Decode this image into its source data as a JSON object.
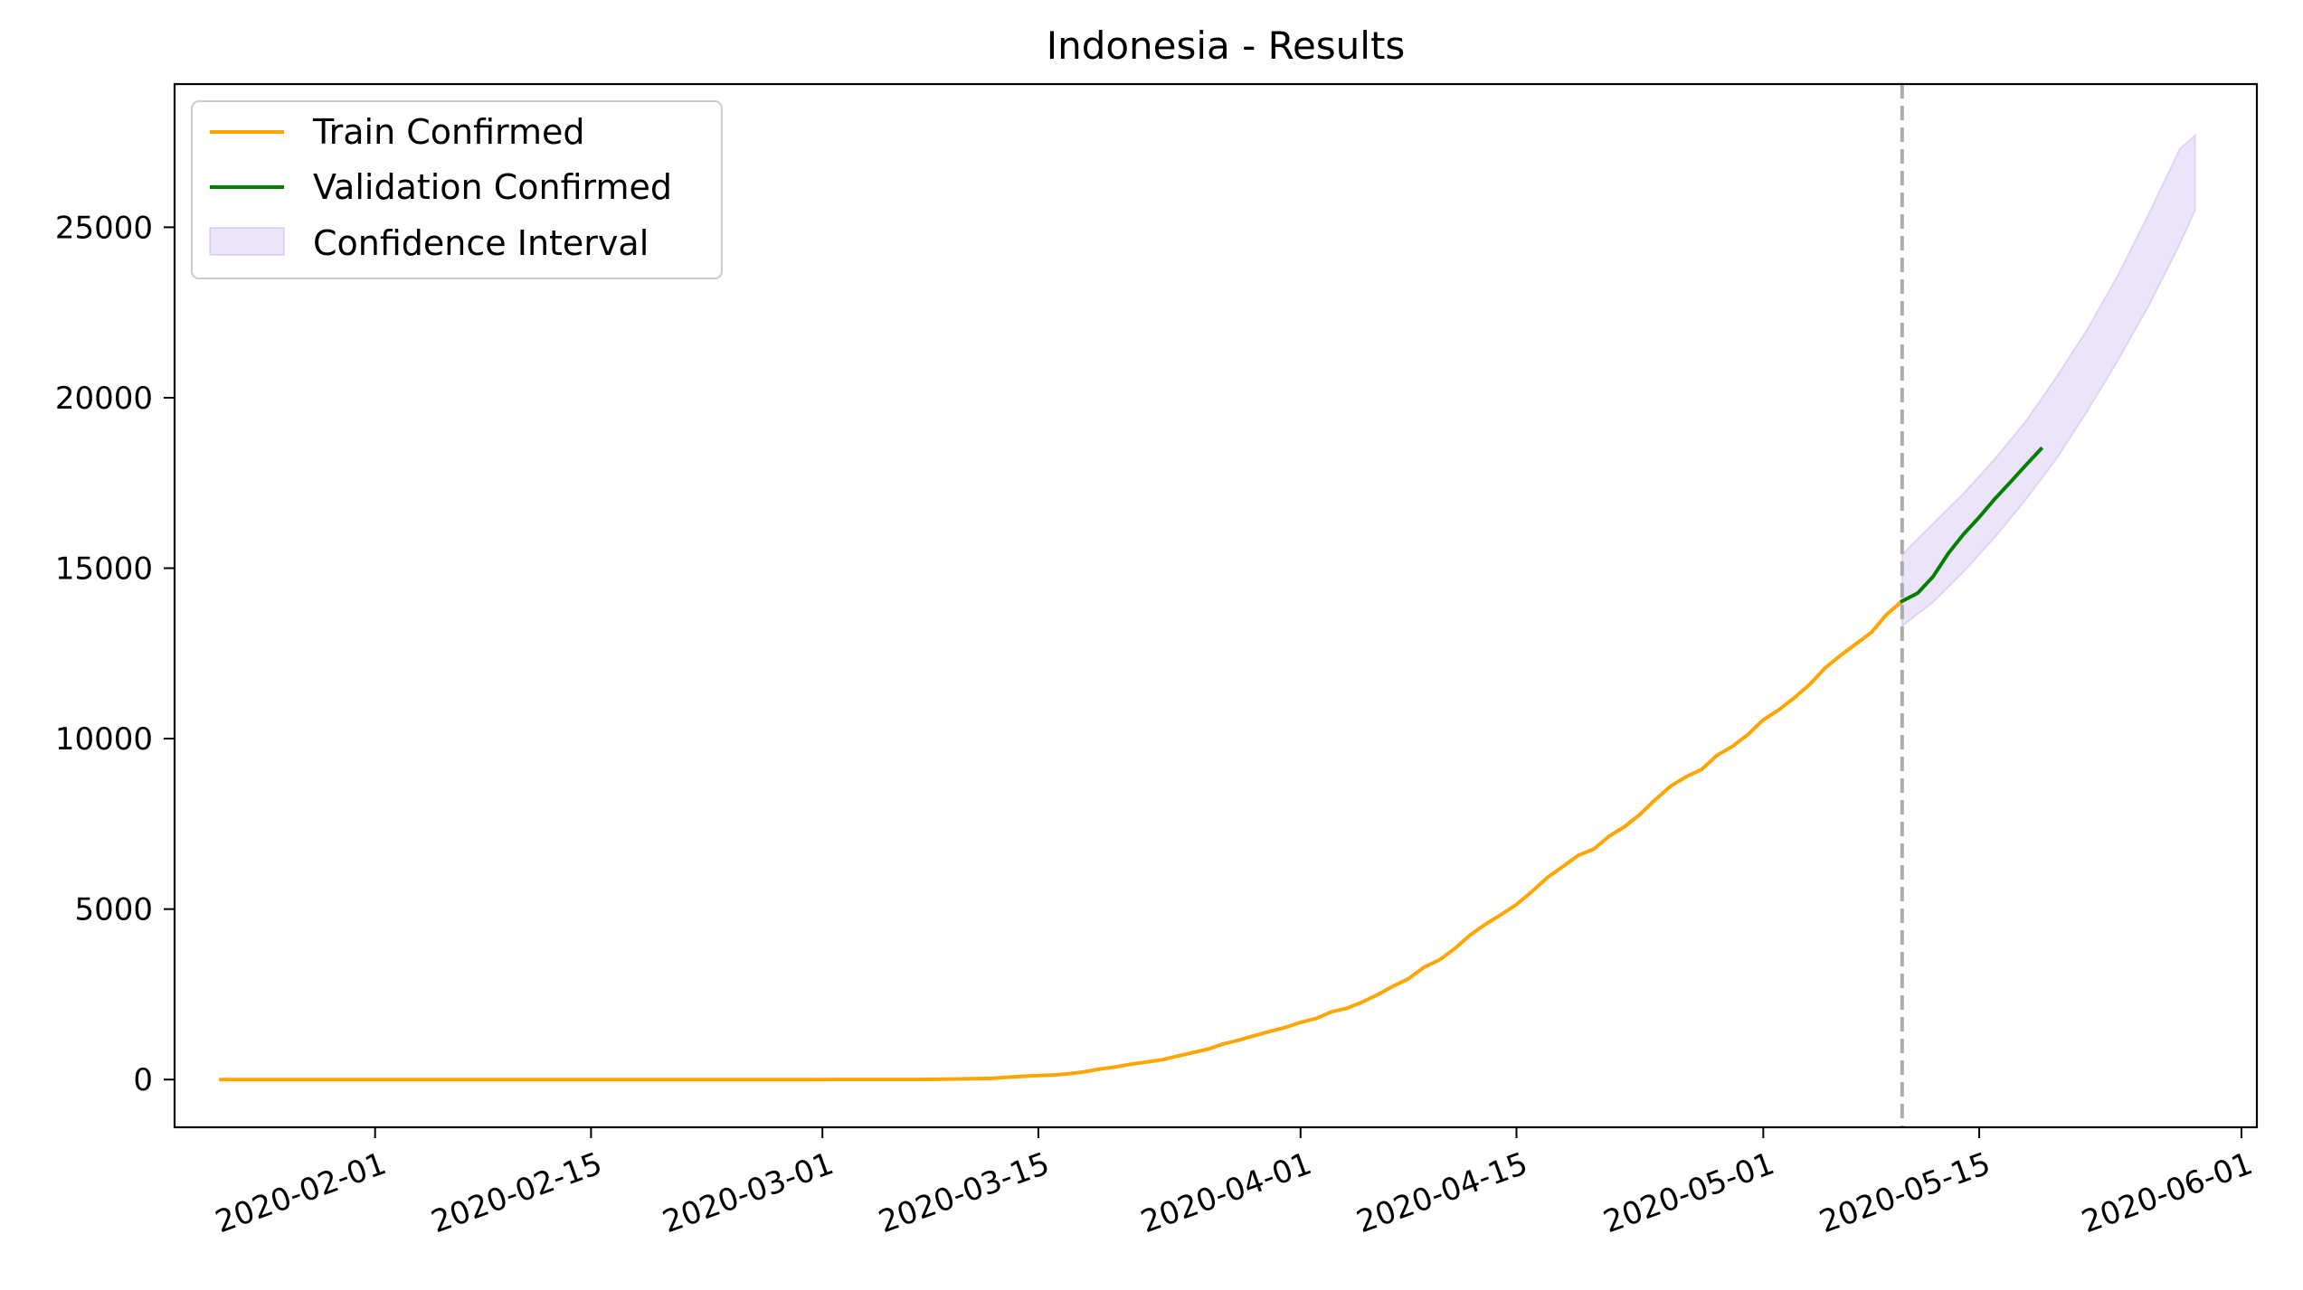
{
  "chart_data": {
    "type": "line",
    "title": "Indonesia - Results",
    "xlabel": "",
    "ylabel": "",
    "x_range": [
      "2020-01-19",
      "2020-06-02"
    ],
    "ylim": [
      -1400,
      29200
    ],
    "x_ticks": [
      "2020-02-01",
      "2020-02-15",
      "2020-03-01",
      "2020-03-15",
      "2020-04-01",
      "2020-04-15",
      "2020-05-01",
      "2020-05-15",
      "2020-06-01"
    ],
    "y_ticks": [
      0,
      5000,
      10000,
      15000,
      20000,
      25000
    ],
    "grid": false,
    "legend_placement": "top-left",
    "legend": {
      "train": "Train Confirmed",
      "validation": "Validation Confirmed",
      "interval": "Confidence Interval"
    },
    "split_date": "2020-05-10",
    "series": [
      {
        "name": "Train Confirmed",
        "color": "#ffa500",
        "points": [
          [
            "2020-01-22",
            0
          ],
          [
            "2020-03-01",
            0
          ],
          [
            "2020-03-02",
            2
          ],
          [
            "2020-03-05",
            2
          ],
          [
            "2020-03-07",
            4
          ],
          [
            "2020-03-08",
            6
          ],
          [
            "2020-03-10",
            19
          ],
          [
            "2020-03-12",
            34
          ],
          [
            "2020-03-13",
            69
          ],
          [
            "2020-03-14",
            96
          ],
          [
            "2020-03-15",
            117
          ],
          [
            "2020-03-16",
            134
          ],
          [
            "2020-03-17",
            172
          ],
          [
            "2020-03-18",
            227
          ],
          [
            "2020-03-19",
            309
          ],
          [
            "2020-03-20",
            369
          ],
          [
            "2020-03-21",
            450
          ],
          [
            "2020-03-22",
            514
          ],
          [
            "2020-03-23",
            579
          ],
          [
            "2020-03-24",
            686
          ],
          [
            "2020-03-25",
            790
          ],
          [
            "2020-03-26",
            893
          ],
          [
            "2020-03-27",
            1046
          ],
          [
            "2020-03-28",
            1155
          ],
          [
            "2020-03-29",
            1285
          ],
          [
            "2020-03-30",
            1414
          ],
          [
            "2020-03-31",
            1528
          ],
          [
            "2020-04-01",
            1677
          ],
          [
            "2020-04-02",
            1790
          ],
          [
            "2020-04-03",
            1986
          ],
          [
            "2020-04-04",
            2092
          ],
          [
            "2020-04-05",
            2273
          ],
          [
            "2020-04-06",
            2491
          ],
          [
            "2020-04-07",
            2738
          ],
          [
            "2020-04-08",
            2956
          ],
          [
            "2020-04-09",
            3293
          ],
          [
            "2020-04-10",
            3512
          ],
          [
            "2020-04-11",
            3842
          ],
          [
            "2020-04-12",
            4241
          ],
          [
            "2020-04-13",
            4557
          ],
          [
            "2020-04-14",
            4839
          ],
          [
            "2020-04-15",
            5136
          ],
          [
            "2020-04-16",
            5516
          ],
          [
            "2020-04-17",
            5923
          ],
          [
            "2020-04-18",
            6248
          ],
          [
            "2020-04-19",
            6575
          ],
          [
            "2020-04-20",
            6760
          ],
          [
            "2020-04-21",
            7135
          ],
          [
            "2020-04-22",
            7418
          ],
          [
            "2020-04-23",
            7775
          ],
          [
            "2020-04-24",
            8211
          ],
          [
            "2020-04-25",
            8607
          ],
          [
            "2020-04-26",
            8882
          ],
          [
            "2020-04-27",
            9096
          ],
          [
            "2020-04-28",
            9511
          ],
          [
            "2020-04-29",
            9771
          ],
          [
            "2020-04-30",
            10118
          ],
          [
            "2020-05-01",
            10551
          ],
          [
            "2020-05-02",
            10843
          ],
          [
            "2020-05-03",
            11192
          ],
          [
            "2020-05-04",
            11587
          ],
          [
            "2020-05-05",
            12071
          ],
          [
            "2020-05-06",
            12438
          ],
          [
            "2020-05-07",
            12776
          ],
          [
            "2020-05-08",
            13112
          ],
          [
            "2020-05-09",
            13645
          ],
          [
            "2020-05-10",
            14032
          ]
        ]
      },
      {
        "name": "Validation Confirmed",
        "color": "#008000",
        "points": [
          [
            "2020-05-10",
            14032
          ],
          [
            "2020-05-11",
            14265
          ],
          [
            "2020-05-12",
            14749
          ],
          [
            "2020-05-13",
            15438
          ],
          [
            "2020-05-14",
            16006
          ],
          [
            "2020-05-15",
            16496
          ],
          [
            "2020-05-16",
            17025
          ],
          [
            "2020-05-17",
            17514
          ],
          [
            "2020-05-18",
            18010
          ],
          [
            "2020-05-19",
            18496
          ]
        ]
      }
    ],
    "confidence_interval": {
      "name": "Confidence Interval",
      "color": "#9370db",
      "opacity": 0.18,
      "points": [
        [
          "2020-05-10",
          13300,
          15400
        ],
        [
          "2020-05-12",
          14000,
          16300
        ],
        [
          "2020-05-14",
          14900,
          17200
        ],
        [
          "2020-05-16",
          15900,
          18200
        ],
        [
          "2020-05-18",
          17000,
          19300
        ],
        [
          "2020-05-20",
          18200,
          20600
        ],
        [
          "2020-05-22",
          19600,
          22000
        ],
        [
          "2020-05-24",
          21100,
          23600
        ],
        [
          "2020-05-26",
          22700,
          25400
        ],
        [
          "2020-05-28",
          24500,
          27300
        ],
        [
          "2020-05-29",
          25500,
          27700
        ]
      ]
    }
  }
}
